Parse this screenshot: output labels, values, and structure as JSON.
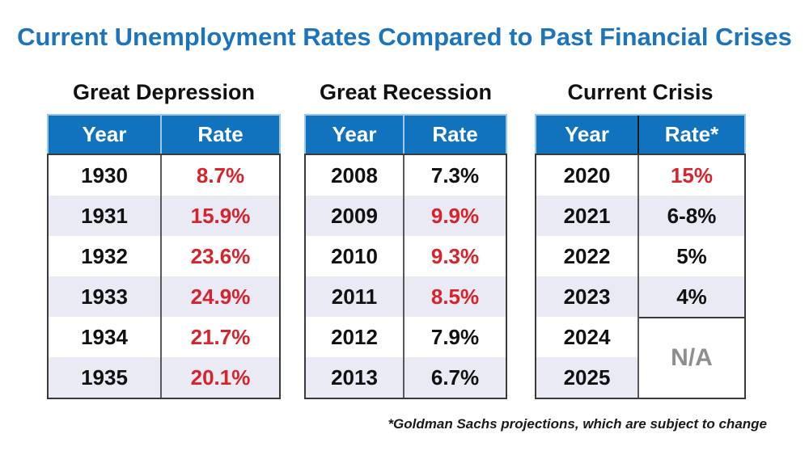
{
  "page": {
    "title": "Current Unemployment Rates Compared to Past Financial Crises",
    "footnote": "*Goldman Sachs projections, which are subject to change"
  },
  "colors": {
    "title_blue": "#1C74BC",
    "header_blue": "#1172BE",
    "header_divider_light": "#9CC9EA",
    "alt_row_bg": "#E9EAF4",
    "highlight_red": "#D7232B",
    "na_gray": "#8E8E8E",
    "border_dark": "#3A3A3A"
  },
  "chart_data": [
    {
      "type": "table",
      "title": "Great Depression",
      "columns": [
        "Year",
        "Rate"
      ],
      "rows": [
        {
          "year": "1930",
          "rate": "8.7%",
          "highlight": true
        },
        {
          "year": "1931",
          "rate": "15.9%",
          "highlight": true
        },
        {
          "year": "1932",
          "rate": "23.6%",
          "highlight": true
        },
        {
          "year": "1933",
          "rate": "24.9%",
          "highlight": true
        },
        {
          "year": "1934",
          "rate": "21.7%",
          "highlight": true
        },
        {
          "year": "1935",
          "rate": "20.1%",
          "highlight": true
        }
      ]
    },
    {
      "type": "table",
      "title": "Great Recession",
      "columns": [
        "Year",
        "Rate"
      ],
      "rows": [
        {
          "year": "2008",
          "rate": "7.3%",
          "highlight": false
        },
        {
          "year": "2009",
          "rate": "9.9%",
          "highlight": true
        },
        {
          "year": "2010",
          "rate": "9.3%",
          "highlight": true
        },
        {
          "year": "2011",
          "rate": "8.5%",
          "highlight": true
        },
        {
          "year": "2012",
          "rate": "7.9%",
          "highlight": false
        },
        {
          "year": "2013",
          "rate": "6.7%",
          "highlight": false
        }
      ]
    },
    {
      "type": "table",
      "title": "Current Crisis",
      "columns": [
        "Year",
        "Rate*"
      ],
      "rows": [
        {
          "year": "2020",
          "rate": "15%",
          "highlight": true
        },
        {
          "year": "2021",
          "rate": "6-8%",
          "highlight": false
        },
        {
          "year": "2022",
          "rate": "5%",
          "highlight": false
        },
        {
          "year": "2023",
          "rate": "4%",
          "highlight": false
        },
        {
          "year": "2024",
          "rate": null,
          "highlight": false
        },
        {
          "year": "2025",
          "rate": null,
          "highlight": false
        }
      ],
      "merged_cell": {
        "spans_years": [
          "2024",
          "2025"
        ],
        "value": "N/A"
      }
    }
  ]
}
